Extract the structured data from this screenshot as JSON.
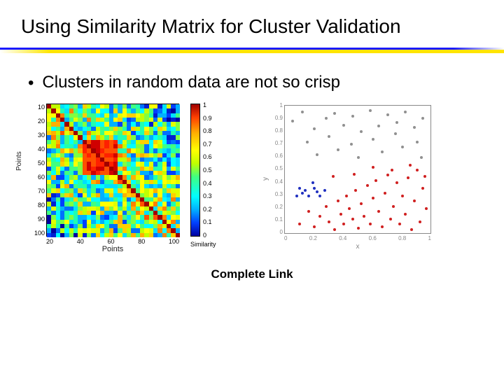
{
  "slide": {
    "title": "Using Similarity Matrix for Cluster Validation",
    "bullet": "Clusters in random data are not so crisp",
    "caption": "Complete Link"
  },
  "separator": {
    "blue": "#1a1aff",
    "yellow": "#ffe400"
  },
  "heatmap": {
    "type": "heatmap",
    "grid_n": 30,
    "x_ticks": [
      "20",
      "40",
      "60",
      "80",
      "100"
    ],
    "y_ticks": [
      "10",
      "20",
      "30",
      "40",
      "50",
      "60",
      "70",
      "80",
      "90",
      "100"
    ],
    "xlabel": "Points",
    "ylabel": "Points",
    "colorbar_ticks": [
      "1",
      "0.9",
      "0.8",
      "0.7",
      "0.6",
      "0.5",
      "0.4",
      "0.3",
      "0.2",
      "0.1",
      "0"
    ],
    "colorbar_label": "Similarity",
    "color_stops": [
      "#0000a0",
      "#0020d0",
      "#0040ff",
      "#0070ff",
      "#00b0ff",
      "#00e0ff",
      "#00ffff",
      "#20ffb0",
      "#40ff80",
      "#80ff40",
      "#c0ff00",
      "#e0ff00",
      "#ffff00",
      "#ffd000",
      "#ffb000",
      "#ff8000",
      "#ff5000",
      "#ff2000",
      "#d00000",
      "#a00000"
    ],
    "block_start": 8,
    "block_end": 15,
    "seed": 7
  },
  "scatter": {
    "type": "scatter",
    "xlabel": "x",
    "ylabel": "y",
    "xlim": [
      0,
      1
    ],
    "ylim": [
      0,
      1
    ],
    "x_ticks": [
      "0",
      "0.2",
      "0.4",
      "0.6",
      "0.8",
      "1"
    ],
    "y_ticks": [
      "1",
      "0.9",
      "0.8",
      "0.7",
      "0.6",
      "0.5",
      "0.4",
      "0.3",
      "0.2",
      "0.1",
      "0"
    ],
    "colors": {
      "c1": "#d02020",
      "c2": "#2030c0",
      "c3": "#909090"
    },
    "points": [
      {
        "x": 0.08,
        "y": 0.3,
        "c": "c2"
      },
      {
        "x": 0.1,
        "y": 0.36,
        "c": "c2"
      },
      {
        "x": 0.12,
        "y": 0.32,
        "c": "c2"
      },
      {
        "x": 0.14,
        "y": 0.34,
        "c": "c2"
      },
      {
        "x": 0.16,
        "y": 0.3,
        "c": "c2"
      },
      {
        "x": 0.2,
        "y": 0.36,
        "c": "c2"
      },
      {
        "x": 0.22,
        "y": 0.33,
        "c": "c2"
      },
      {
        "x": 0.24,
        "y": 0.3,
        "c": "c2"
      },
      {
        "x": 0.19,
        "y": 0.4,
        "c": "c2"
      },
      {
        "x": 0.27,
        "y": 0.34,
        "c": "c2"
      },
      {
        "x": 0.05,
        "y": 0.88,
        "c": "c3"
      },
      {
        "x": 0.12,
        "y": 0.95,
        "c": "c3"
      },
      {
        "x": 0.2,
        "y": 0.82,
        "c": "c3"
      },
      {
        "x": 0.28,
        "y": 0.9,
        "c": "c3"
      },
      {
        "x": 0.34,
        "y": 0.94,
        "c": "c3"
      },
      {
        "x": 0.4,
        "y": 0.85,
        "c": "c3"
      },
      {
        "x": 0.46,
        "y": 0.92,
        "c": "c3"
      },
      {
        "x": 0.52,
        "y": 0.8,
        "c": "c3"
      },
      {
        "x": 0.58,
        "y": 0.96,
        "c": "c3"
      },
      {
        "x": 0.64,
        "y": 0.84,
        "c": "c3"
      },
      {
        "x": 0.7,
        "y": 0.93,
        "c": "c3"
      },
      {
        "x": 0.76,
        "y": 0.87,
        "c": "c3"
      },
      {
        "x": 0.82,
        "y": 0.95,
        "c": "c3"
      },
      {
        "x": 0.88,
        "y": 0.83,
        "c": "c3"
      },
      {
        "x": 0.94,
        "y": 0.9,
        "c": "c3"
      },
      {
        "x": 0.15,
        "y": 0.72,
        "c": "c3"
      },
      {
        "x": 0.3,
        "y": 0.76,
        "c": "c3"
      },
      {
        "x": 0.45,
        "y": 0.7,
        "c": "c3"
      },
      {
        "x": 0.6,
        "y": 0.74,
        "c": "c3"
      },
      {
        "x": 0.75,
        "y": 0.78,
        "c": "c3"
      },
      {
        "x": 0.9,
        "y": 0.72,
        "c": "c3"
      },
      {
        "x": 0.22,
        "y": 0.62,
        "c": "c3"
      },
      {
        "x": 0.36,
        "y": 0.66,
        "c": "c3"
      },
      {
        "x": 0.5,
        "y": 0.6,
        "c": "c3"
      },
      {
        "x": 0.66,
        "y": 0.64,
        "c": "c3"
      },
      {
        "x": 0.8,
        "y": 0.68,
        "c": "c3"
      },
      {
        "x": 0.93,
        "y": 0.6,
        "c": "c3"
      },
      {
        "x": 0.1,
        "y": 0.08,
        "c": "c1"
      },
      {
        "x": 0.16,
        "y": 0.18,
        "c": "c1"
      },
      {
        "x": 0.2,
        "y": 0.06,
        "c": "c1"
      },
      {
        "x": 0.24,
        "y": 0.14,
        "c": "c1"
      },
      {
        "x": 0.28,
        "y": 0.22,
        "c": "c1"
      },
      {
        "x": 0.3,
        "y": 0.1,
        "c": "c1"
      },
      {
        "x": 0.34,
        "y": 0.04,
        "c": "c1"
      },
      {
        "x": 0.36,
        "y": 0.26,
        "c": "c1"
      },
      {
        "x": 0.38,
        "y": 0.16,
        "c": "c1"
      },
      {
        "x": 0.4,
        "y": 0.08,
        "c": "c1"
      },
      {
        "x": 0.42,
        "y": 0.3,
        "c": "c1"
      },
      {
        "x": 0.44,
        "y": 0.2,
        "c": "c1"
      },
      {
        "x": 0.46,
        "y": 0.12,
        "c": "c1"
      },
      {
        "x": 0.48,
        "y": 0.34,
        "c": "c1"
      },
      {
        "x": 0.5,
        "y": 0.05,
        "c": "c1"
      },
      {
        "x": 0.52,
        "y": 0.24,
        "c": "c1"
      },
      {
        "x": 0.54,
        "y": 0.14,
        "c": "c1"
      },
      {
        "x": 0.56,
        "y": 0.38,
        "c": "c1"
      },
      {
        "x": 0.58,
        "y": 0.08,
        "c": "c1"
      },
      {
        "x": 0.6,
        "y": 0.28,
        "c": "c1"
      },
      {
        "x": 0.62,
        "y": 0.42,
        "c": "c1"
      },
      {
        "x": 0.64,
        "y": 0.18,
        "c": "c1"
      },
      {
        "x": 0.66,
        "y": 0.06,
        "c": "c1"
      },
      {
        "x": 0.68,
        "y": 0.32,
        "c": "c1"
      },
      {
        "x": 0.7,
        "y": 0.46,
        "c": "c1"
      },
      {
        "x": 0.72,
        "y": 0.12,
        "c": "c1"
      },
      {
        "x": 0.74,
        "y": 0.22,
        "c": "c1"
      },
      {
        "x": 0.76,
        "y": 0.4,
        "c": "c1"
      },
      {
        "x": 0.78,
        "y": 0.08,
        "c": "c1"
      },
      {
        "x": 0.8,
        "y": 0.3,
        "c": "c1"
      },
      {
        "x": 0.82,
        "y": 0.16,
        "c": "c1"
      },
      {
        "x": 0.84,
        "y": 0.44,
        "c": "c1"
      },
      {
        "x": 0.86,
        "y": 0.04,
        "c": "c1"
      },
      {
        "x": 0.88,
        "y": 0.26,
        "c": "c1"
      },
      {
        "x": 0.9,
        "y": 0.5,
        "c": "c1"
      },
      {
        "x": 0.92,
        "y": 0.1,
        "c": "c1"
      },
      {
        "x": 0.94,
        "y": 0.36,
        "c": "c1"
      },
      {
        "x": 0.96,
        "y": 0.2,
        "c": "c1"
      },
      {
        "x": 0.33,
        "y": 0.45,
        "c": "c1"
      },
      {
        "x": 0.47,
        "y": 0.47,
        "c": "c1"
      },
      {
        "x": 0.6,
        "y": 0.52,
        "c": "c1"
      },
      {
        "x": 0.73,
        "y": 0.5,
        "c": "c1"
      },
      {
        "x": 0.85,
        "y": 0.54,
        "c": "c1"
      },
      {
        "x": 0.95,
        "y": 0.45,
        "c": "c1"
      }
    ]
  }
}
